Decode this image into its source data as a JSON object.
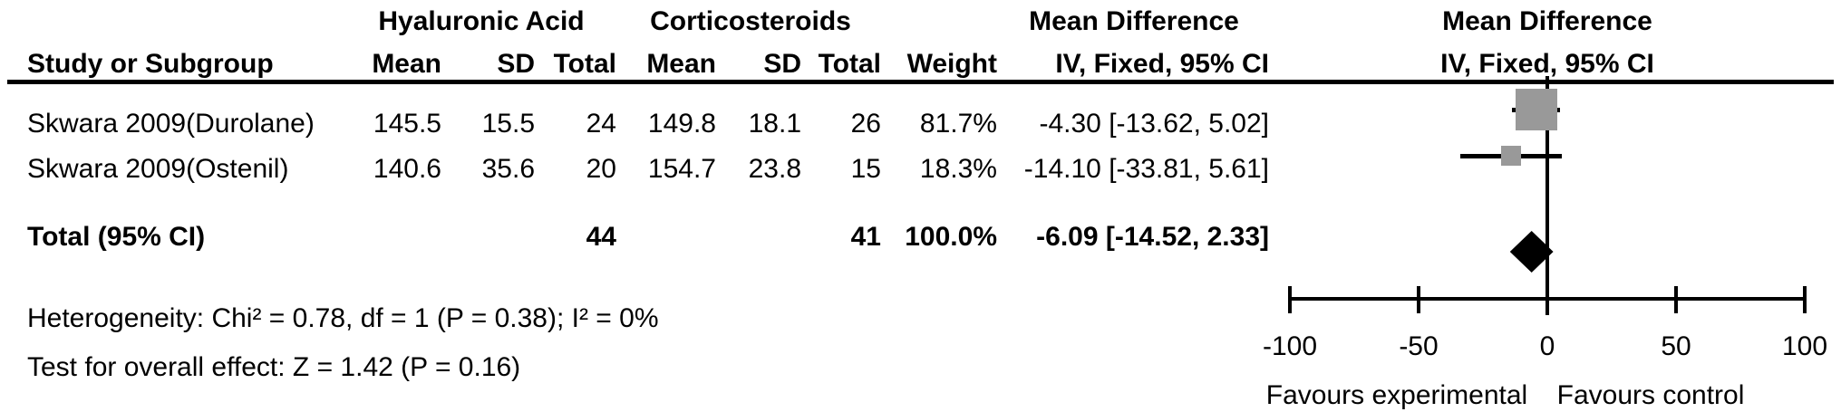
{
  "colors": {
    "background": "#ffffff",
    "text": "#000000",
    "line": "#000000",
    "square": "#999999",
    "diamond": "#000000"
  },
  "header": {
    "group_experimental": "Hyaluronic Acid",
    "group_control": "Corticosteroids",
    "group_md_table": "Mean Difference",
    "group_md_plot": "Mean Difference",
    "study": "Study or Subgroup",
    "mean_e": "Mean",
    "sd_e": "SD",
    "total_e": "Total",
    "mean_c": "Mean",
    "sd_c": "SD",
    "total_c": "Total",
    "weight": "Weight",
    "ci_table": "IV, Fixed, 95% CI",
    "ci_plot": "IV, Fixed, 95% CI"
  },
  "table": {
    "rows": [
      {
        "study": "Skwara 2009(Durolane)",
        "mean_e": "145.5",
        "sd_e": "15.5",
        "total_e": "24",
        "mean_c": "149.8",
        "sd_c": "18.1",
        "total_c": "26",
        "weight": "81.7%",
        "ci": "-4.30 [-13.62, 5.02]"
      },
      {
        "study": "Skwara 2009(Ostenil)",
        "mean_e": "140.6",
        "sd_e": "35.6",
        "total_e": "20",
        "mean_c": "154.7",
        "sd_c": "23.8",
        "total_c": "15",
        "weight": "18.3%",
        "ci": "-14.10 [-33.81, 5.61]"
      }
    ],
    "total_row": {
      "label": "Total (95% CI)",
      "total_e": "44",
      "total_c": "41",
      "weight": "100.0%",
      "ci": "-6.09 [-14.52, 2.33]"
    }
  },
  "footnotes": {
    "heterogeneity": "Heterogeneity: Chi² = 0.78, df = 1 (P = 0.38); I² = 0%",
    "overall_effect": "Test for overall effect: Z = 1.42 (P = 0.16)"
  },
  "axis": {
    "tick_labels": [
      "-100",
      "-50",
      "0",
      "50",
      "100"
    ],
    "favours_left": "Favours experimental",
    "favours_right": "Favours control"
  },
  "chart_data": {
    "type": "forest",
    "effect_measure": "Mean Difference",
    "method": "IV, Fixed, 95% CI",
    "x_ticks": [
      -100,
      -50,
      0,
      50,
      100
    ],
    "xlim": [
      -105,
      105
    ],
    "vertical_line_at": 0,
    "favours": [
      "Favours experimental",
      "Favours control"
    ],
    "studies": [
      {
        "name": "Skwara 2009(Durolane)",
        "exp_mean": 145.5,
        "exp_sd": 15.5,
        "exp_n": 24,
        "ctrl_mean": 149.8,
        "ctrl_sd": 18.1,
        "ctrl_n": 26,
        "weight_pct": 81.7,
        "md": -4.3,
        "ci_low": -13.62,
        "ci_high": 5.02
      },
      {
        "name": "Skwara 2009(Ostenil)",
        "exp_mean": 140.6,
        "exp_sd": 35.6,
        "exp_n": 20,
        "ctrl_mean": 154.7,
        "ctrl_sd": 23.8,
        "ctrl_n": 15,
        "weight_pct": 18.3,
        "md": -14.1,
        "ci_low": -33.81,
        "ci_high": 5.61
      }
    ],
    "total": {
      "name": "Total (95% CI)",
      "exp_n": 44,
      "ctrl_n": 41,
      "weight_pct": 100.0,
      "md": -6.09,
      "ci_low": -14.52,
      "ci_high": 2.33
    },
    "heterogeneity": {
      "chi2": 0.78,
      "df": 1,
      "p": 0.38,
      "i2_pct": 0
    },
    "overall_effect": {
      "z": 1.42,
      "p": 0.16
    }
  }
}
